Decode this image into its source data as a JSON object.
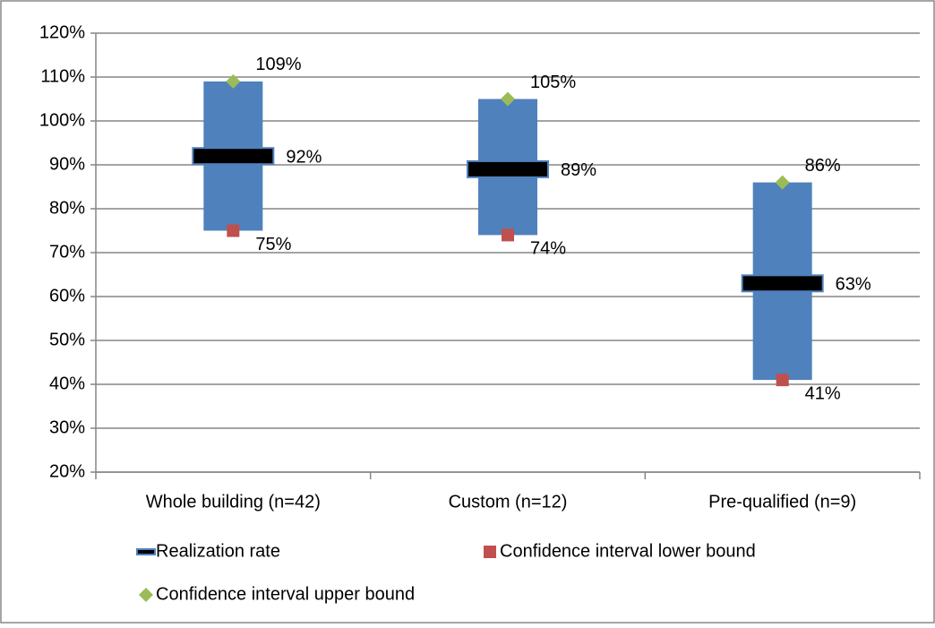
{
  "chart_data": {
    "type": "range",
    "categories": [
      "Whole building (n=42)",
      "Custom (n=12)",
      "Pre-qualified (n=9)"
    ],
    "box_color": "#4f81bd",
    "series": [
      {
        "name": "Realization rate",
        "color": "#000000",
        "values": [
          92,
          89,
          63
        ],
        "value_labels": [
          "92%",
          "89%",
          "63%"
        ]
      },
      {
        "name": "Confidence interval lower bound",
        "color": "#c0504d",
        "values": [
          75,
          74,
          41
        ],
        "value_labels": [
          "75%",
          "74%",
          "41%"
        ]
      },
      {
        "name": "Confidence interval upper bound",
        "color": "#9bbb59",
        "values": [
          109,
          105,
          86
        ],
        "value_labels": [
          "109%",
          "105%",
          "86%"
        ]
      }
    ],
    "ylim": [
      20,
      120
    ],
    "yticks": [
      {
        "value": 20,
        "label": "20%"
      },
      {
        "value": 30,
        "label": "30%"
      },
      {
        "value": 40,
        "label": "40%"
      },
      {
        "value": 50,
        "label": "50%"
      },
      {
        "value": 60,
        "label": "60%"
      },
      {
        "value": 70,
        "label": "70%"
      },
      {
        "value": 80,
        "label": "80%"
      },
      {
        "value": 90,
        "label": "90%"
      },
      {
        "value": 100,
        "label": "100%"
      },
      {
        "value": 110,
        "label": "110%"
      },
      {
        "value": 120,
        "label": "120%"
      }
    ],
    "grid": true,
    "legend": "bottom"
  }
}
